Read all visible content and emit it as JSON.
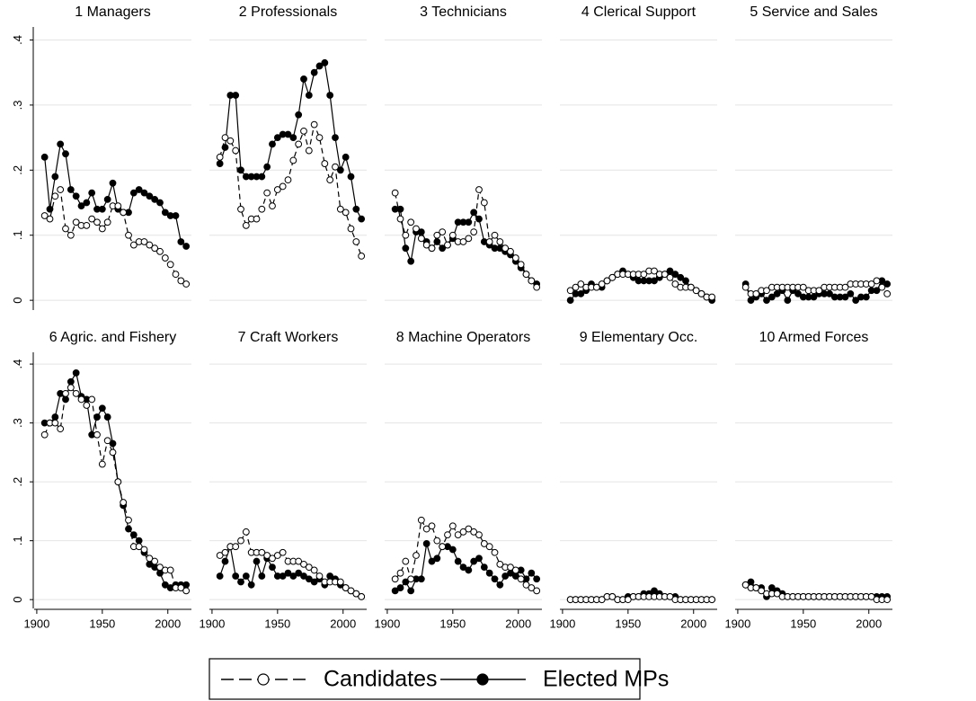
{
  "chart_data": {
    "type": "line",
    "x": [
      1906,
      1910,
      1914,
      1918,
      1922,
      1926,
      1930,
      1934,
      1938,
      1942,
      1946,
      1950,
      1954,
      1958,
      1962,
      1966,
      1970,
      1974,
      1978,
      1982,
      1986,
      1990,
      1994,
      1998,
      2002,
      2006,
      2010,
      2014
    ],
    "xlim": [
      1898,
      2018
    ],
    "xticks": [
      1900,
      1950,
      2000
    ],
    "ylim": [
      -0.015,
      0.42
    ],
    "yticks": [
      0,
      {
        "value": 0.1,
        "label": ".1"
      },
      {
        "value": 0.2,
        "label": ".2"
      },
      {
        "value": 0.3,
        "label": ".3"
      },
      {
        "value": 0.4,
        "label": ".4"
      }
    ],
    "grid": true,
    "series": [
      {
        "name": "Candidates",
        "color": "#000000",
        "dashed": true,
        "marker": "hollow"
      },
      {
        "name": "Elected MPs",
        "color": "#000000",
        "dashed": false,
        "marker": "filled"
      }
    ],
    "panels": [
      {
        "title": "1 Managers",
        "values": [
          [
            0.13,
            0.125,
            0.16,
            0.17,
            0.11,
            0.1,
            0.12,
            0.115,
            0.115,
            0.125,
            0.12,
            0.11,
            0.12,
            0.145,
            0.145,
            0.135,
            0.1,
            0.085,
            0.09,
            0.09,
            0.085,
            0.08,
            0.075,
            0.065,
            0.055,
            0.04,
            0.03,
            0.025
          ],
          [
            0.22,
            0.14,
            0.19,
            0.24,
            0.225,
            0.17,
            0.16,
            0.145,
            0.15,
            0.165,
            0.14,
            0.14,
            0.155,
            0.18,
            0.14,
            0.135,
            0.135,
            0.165,
            0.17,
            0.165,
            0.16,
            0.155,
            0.15,
            0.135,
            0.13,
            0.13,
            0.09,
            0.083
          ]
        ]
      },
      {
        "title": "2 Professionals",
        "values": [
          [
            0.22,
            0.25,
            0.245,
            0.23,
            0.14,
            0.115,
            0.125,
            0.125,
            0.14,
            0.165,
            0.145,
            0.17,
            0.175,
            0.185,
            0.215,
            0.24,
            0.26,
            0.23,
            0.27,
            0.25,
            0.21,
            0.185,
            0.205,
            0.14,
            0.135,
            0.11,
            0.09,
            0.068
          ],
          [
            0.21,
            0.235,
            0.315,
            0.315,
            0.2,
            0.19,
            0.19,
            0.19,
            0.19,
            0.205,
            0.24,
            0.25,
            0.255,
            0.255,
            0.25,
            0.285,
            0.34,
            0.315,
            0.35,
            0.36,
            0.365,
            0.315,
            0.25,
            0.2,
            0.22,
            0.19,
            0.14,
            0.125
          ]
        ]
      },
      {
        "title": "3 Technicians",
        "values": [
          [
            0.165,
            0.125,
            0.1,
            0.12,
            0.11,
            0.095,
            0.085,
            0.08,
            0.1,
            0.105,
            0.085,
            0.1,
            0.09,
            0.09,
            0.095,
            0.105,
            0.17,
            0.15,
            0.09,
            0.1,
            0.09,
            0.08,
            0.075,
            0.065,
            0.055,
            0.04,
            0.03,
            0.02
          ],
          [
            0.14,
            0.14,
            0.08,
            0.06,
            0.105,
            0.105,
            0.09,
            0.08,
            0.09,
            0.08,
            0.085,
            0.095,
            0.12,
            0.12,
            0.12,
            0.135,
            0.125,
            0.09,
            0.085,
            0.08,
            0.08,
            0.075,
            0.07,
            0.06,
            0.05,
            0.04,
            0.03,
            0.025
          ]
        ]
      },
      {
        "title": "4 Clerical Support",
        "values": [
          [
            0.015,
            0.02,
            0.025,
            0.02,
            0.02,
            0.02,
            0.025,
            0.03,
            0.035,
            0.04,
            0.04,
            0.04,
            0.04,
            0.04,
            0.04,
            0.045,
            0.045,
            0.04,
            0.04,
            0.035,
            0.025,
            0.02,
            0.02,
            0.02,
            0.015,
            0.01,
            0.005,
            0.005
          ],
          [
            0,
            0.01,
            0.01,
            0.015,
            0.025,
            0.02,
            0.02,
            0.03,
            0.035,
            0.04,
            0.045,
            0.04,
            0.035,
            0.03,
            0.03,
            0.03,
            0.03,
            0.035,
            0.04,
            0.045,
            0.04,
            0.035,
            0.03,
            0.02,
            0.015,
            0.01,
            0.005,
            0
          ]
        ]
      },
      {
        "title": "5 Service and Sales",
        "values": [
          [
            0.02,
            0.01,
            0.01,
            0.015,
            0.015,
            0.02,
            0.02,
            0.02,
            0.02,
            0.02,
            0.02,
            0.02,
            0.015,
            0.015,
            0.015,
            0.02,
            0.02,
            0.02,
            0.02,
            0.02,
            0.025,
            0.025,
            0.025,
            0.025,
            0.025,
            0.03,
            0.02,
            0.01
          ],
          [
            0.025,
            0,
            0.005,
            0.01,
            0,
            0.005,
            0.01,
            0.015,
            0,
            0.015,
            0.01,
            0.005,
            0.005,
            0.005,
            0.01,
            0.01,
            0.01,
            0.005,
            0.005,
            0.005,
            0.01,
            0,
            0.005,
            0.005,
            0.015,
            0.015,
            0.03,
            0.025
          ]
        ]
      },
      {
        "title": "6 Agric. and Fishery",
        "values": [
          [
            0.28,
            0.3,
            0.3,
            0.29,
            0.35,
            0.36,
            0.35,
            0.34,
            0.33,
            0.34,
            0.28,
            0.23,
            0.27,
            0.25,
            0.2,
            0.165,
            0.135,
            0.09,
            0.09,
            0.085,
            0.07,
            0.065,
            0.055,
            0.05,
            0.05,
            0.02,
            0.02,
            0.015
          ],
          [
            0.3,
            0.3,
            0.31,
            0.35,
            0.34,
            0.37,
            0.385,
            0.345,
            0.34,
            0.28,
            0.31,
            0.325,
            0.31,
            0.265,
            0.2,
            0.16,
            0.12,
            0.11,
            0.1,
            0.08,
            0.06,
            0.055,
            0.045,
            0.025,
            0.02,
            0.025,
            0.025,
            0.025
          ]
        ]
      },
      {
        "title": "7 Craft Workers",
        "values": [
          [
            0.075,
            0.08,
            0.09,
            0.09,
            0.1,
            0.115,
            0.08,
            0.08,
            0.08,
            0.075,
            0.07,
            0.075,
            0.08,
            0.065,
            0.065,
            0.065,
            0.06,
            0.055,
            0.05,
            0.04,
            0.03,
            0.03,
            0.03,
            0.03,
            0.02,
            0.015,
            0.01,
            0.005
          ],
          [
            0.04,
            0.065,
            0.09,
            0.04,
            0.03,
            0.04,
            0.025,
            0.065,
            0.04,
            0.07,
            0.055,
            0.04,
            0.04,
            0.045,
            0.04,
            0.045,
            0.04,
            0.035,
            0.03,
            0.035,
            0.025,
            0.04,
            0.035,
            0.025,
            0.02,
            0.015,
            0.01,
            0.005
          ]
        ]
      },
      {
        "title": "8 Machine Operators",
        "values": [
          [
            0.035,
            0.045,
            0.065,
            0.035,
            0.075,
            0.135,
            0.12,
            0.125,
            0.1,
            0.09,
            0.11,
            0.125,
            0.11,
            0.115,
            0.12,
            0.115,
            0.11,
            0.095,
            0.09,
            0.08,
            0.06,
            0.055,
            0.055,
            0.05,
            0.035,
            0.025,
            0.02,
            0.015
          ],
          [
            0.015,
            0.02,
            0.03,
            0.015,
            0.035,
            0.035,
            0.095,
            0.065,
            0.07,
            0.09,
            0.09,
            0.085,
            0.065,
            0.055,
            0.05,
            0.065,
            0.07,
            0.055,
            0.045,
            0.035,
            0.025,
            0.04,
            0.045,
            0.04,
            0.05,
            0.035,
            0.045,
            0.035
          ]
        ]
      },
      {
        "title": "9 Elementary Occ.",
        "values": [
          [
            0,
            0,
            0,
            0,
            0,
            0,
            0,
            0.005,
            0.005,
            0,
            0,
            0,
            0.005,
            0.005,
            0.005,
            0.005,
            0.005,
            0.005,
            0.005,
            0.005,
            0,
            0,
            0,
            0,
            0,
            0,
            0,
            0
          ],
          [
            0,
            0,
            0,
            0,
            0,
            0,
            0,
            0.005,
            0.005,
            0,
            0,
            0.005,
            0.005,
            0.005,
            0.01,
            0.01,
            0.015,
            0.01,
            0.005,
            0.005,
            0.005,
            0,
            0,
            0,
            0,
            0,
            0,
            0
          ]
        ]
      },
      {
        "title": "10 Armed Forces",
        "values": [
          [
            0.025,
            0.02,
            0.02,
            0.015,
            0.01,
            0.01,
            0.01,
            0.005,
            0.005,
            0.005,
            0.005,
            0.005,
            0.005,
            0.005,
            0.005,
            0.005,
            0.005,
            0.005,
            0.005,
            0.005,
            0.005,
            0.005,
            0.005,
            0.005,
            0.005,
            0,
            0,
            0
          ],
          [
            0.025,
            0.03,
            0.02,
            0.02,
            0.005,
            0.02,
            0.015,
            0.01,
            0.005,
            0.005,
            0.005,
            0.005,
            0.005,
            0.005,
            0.005,
            0.005,
            0.005,
            0.005,
            0.005,
            0.005,
            0.005,
            0.005,
            0.005,
            0.005,
            0.005,
            0.005,
            0.005,
            0.005
          ]
        ]
      }
    ]
  }
}
